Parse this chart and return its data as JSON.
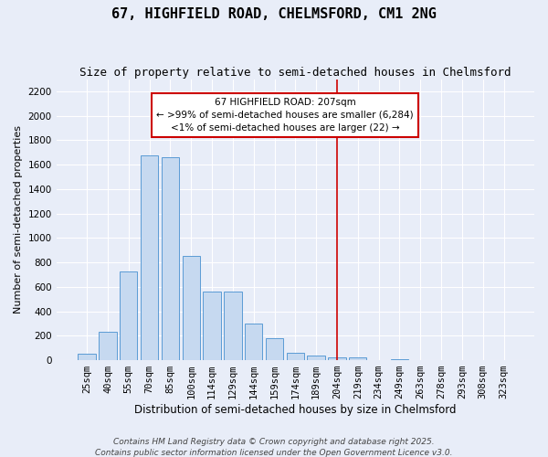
{
  "title": "67, HIGHFIELD ROAD, CHELMSFORD, CM1 2NG",
  "subtitle": "Size of property relative to semi-detached houses in Chelmsford",
  "xlabel": "Distribution of semi-detached houses by size in Chelmsford",
  "ylabel": "Number of semi-detached properties",
  "bar_labels": [
    "25sqm",
    "40sqm",
    "55sqm",
    "70sqm",
    "85sqm",
    "100sqm",
    "114sqm",
    "129sqm",
    "144sqm",
    "159sqm",
    "174sqm",
    "189sqm",
    "204sqm",
    "219sqm",
    "234sqm",
    "249sqm",
    "263sqm",
    "278sqm",
    "293sqm",
    "308sqm",
    "323sqm"
  ],
  "bar_values": [
    50,
    230,
    730,
    1680,
    1660,
    850,
    560,
    560,
    300,
    180,
    60,
    35,
    25,
    20,
    0,
    10,
    0,
    0,
    0,
    0,
    0
  ],
  "bar_color": "#c6d9f0",
  "bar_edge_color": "#5b9bd5",
  "bg_color": "#e8edf8",
  "grid_color": "#ffffff",
  "vline_x_index": 12,
  "vline_color": "#cc0000",
  "annotation_text": "67 HIGHFIELD ROAD: 207sqm\n← >99% of semi-detached houses are smaller (6,284)\n<1% of semi-detached houses are larger (22) →",
  "annotation_box_color": "#cc0000",
  "ylim": [
    0,
    2300
  ],
  "yticks": [
    0,
    200,
    400,
    600,
    800,
    1000,
    1200,
    1400,
    1600,
    1800,
    2000,
    2200
  ],
  "footnote1": "Contains HM Land Registry data © Crown copyright and database right 2025.",
  "footnote2": "Contains public sector information licensed under the Open Government Licence v3.0.",
  "title_fontsize": 11,
  "subtitle_fontsize": 9,
  "xlabel_fontsize": 8.5,
  "ylabel_fontsize": 8,
  "tick_fontsize": 7.5,
  "annotation_fontsize": 7.5,
  "footnote_fontsize": 6.5
}
